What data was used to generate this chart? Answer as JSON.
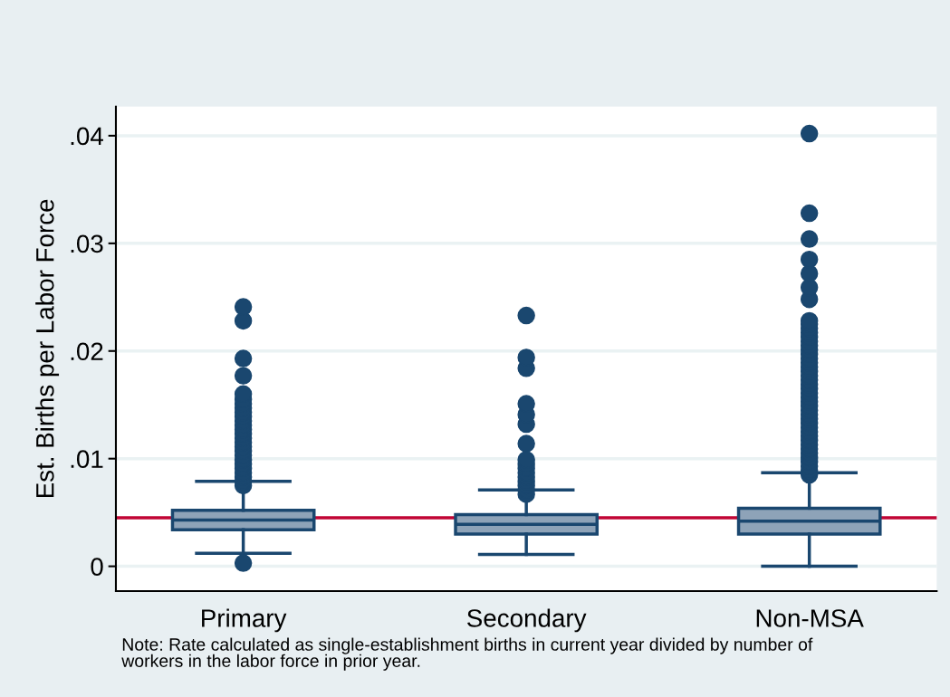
{
  "chart_data": {
    "type": "box",
    "ylabel": "Est. Births per Labor Force",
    "categories": [
      "Primary",
      "Secondary",
      "Non-MSA"
    ],
    "boxes": [
      {
        "low": 0.0012,
        "q1": 0.0034,
        "median": 0.0043,
        "q3": 0.0052,
        "high": 0.0079,
        "outliers": [
          0.0003,
          0.0075,
          0.0079,
          0.0083,
          0.0087,
          0.0091,
          0.0095,
          0.0099,
          0.0103,
          0.0107,
          0.0111,
          0.0115,
          0.0119,
          0.0123,
          0.0127,
          0.0131,
          0.0135,
          0.0139,
          0.0143,
          0.0147,
          0.0151,
          0.0155,
          0.016,
          0.0177,
          0.0193,
          0.0228,
          0.0241
        ]
      },
      {
        "low": 0.0011,
        "q1": 0.003,
        "median": 0.0039,
        "q3": 0.0048,
        "high": 0.0071,
        "outliers": [
          0.0067,
          0.0071,
          0.0075,
          0.0079,
          0.0083,
          0.0087,
          0.0091,
          0.0095,
          0.0099,
          0.0114,
          0.0132,
          0.0141,
          0.0151,
          0.0184,
          0.0194,
          0.0233
        ]
      },
      {
        "low": 0.0,
        "q1": 0.003,
        "median": 0.0042,
        "q3": 0.0054,
        "high": 0.0087,
        "outliers": [
          0.0085,
          0.0089,
          0.0093,
          0.0097,
          0.0101,
          0.0105,
          0.0109,
          0.0113,
          0.0117,
          0.0121,
          0.0125,
          0.0129,
          0.0133,
          0.0137,
          0.0141,
          0.0145,
          0.0149,
          0.0153,
          0.0157,
          0.0161,
          0.0165,
          0.0169,
          0.0173,
          0.0177,
          0.0181,
          0.0185,
          0.0189,
          0.0193,
          0.0197,
          0.0201,
          0.0205,
          0.0209,
          0.0213,
          0.0217,
          0.0221,
          0.0225,
          0.0228,
          0.0248,
          0.0259,
          0.0272,
          0.0285,
          0.0304,
          0.0328,
          0.0402
        ]
      }
    ],
    "color": "#1a476f",
    "colors": [
      "#8ea3b8",
      "#8ea3b8",
      "#8ea3b8"
    ],
    "ylim": [
      -0.0023,
      0.0427
    ],
    "yticks": [
      0,
      {
        "value": 0.01,
        "label": ".01"
      },
      {
        "value": 0.02,
        "label": ".02"
      },
      {
        "value": 0.03,
        "label": ".03"
      },
      {
        "value": 0.04,
        "label": ".04"
      }
    ],
    "grid": "y",
    "ref_lines": [
      {
        "axis": "y",
        "value": 0.0045,
        "color": "#c10534"
      }
    ],
    "annotations": [
      "Note: Rate calculated as single-establishment births in current year divided by number of\nworkers in the labor force in prior year."
    ]
  }
}
